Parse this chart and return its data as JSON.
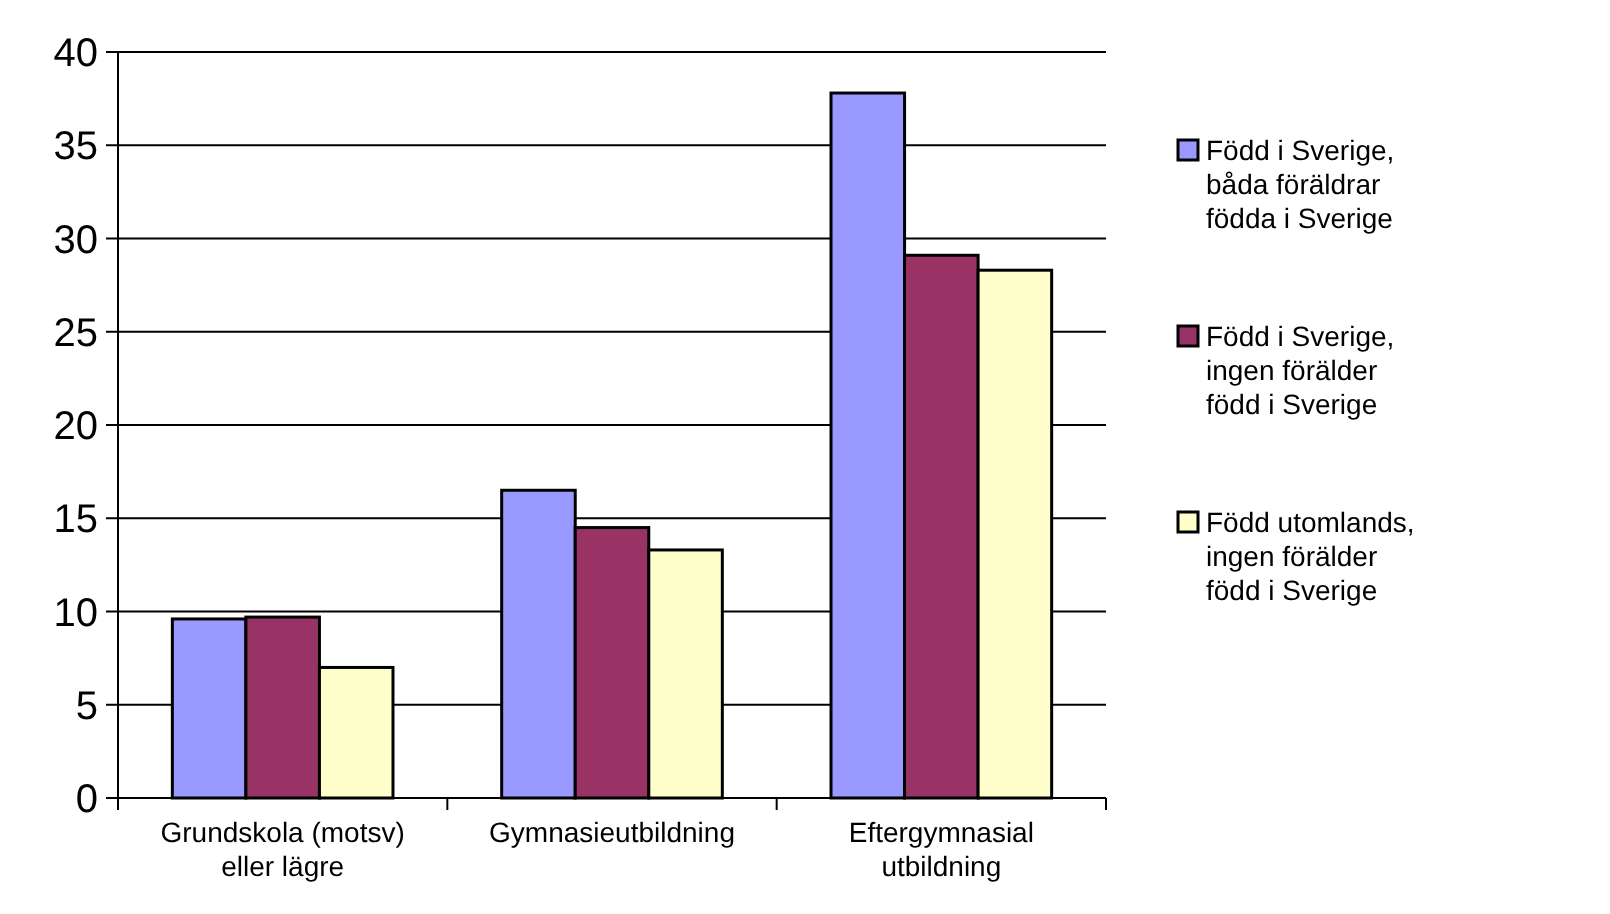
{
  "chart_data": {
    "type": "bar",
    "categories": [
      "Grundskola (motsv) eller lägre",
      "Gymnasieutbildning",
      "Eftergymnasial utbildning"
    ],
    "series": [
      {
        "name": "Född i Sverige, båda föräldrar födda i Sverige",
        "color": "#9999ff",
        "values": [
          9.6,
          16.5,
          37.8
        ]
      },
      {
        "name": "Född i Sverige, ingen förälder född i Sverige",
        "color": "#993366",
        "values": [
          9.7,
          14.5,
          29.1
        ]
      },
      {
        "name": "Född utomlands, ingen förälder född i Sverige",
        "color": "#ffffcc",
        "values": [
          7.0,
          13.3,
          28.3
        ]
      }
    ],
    "ylim": [
      0,
      40
    ],
    "yticks": [
      0,
      5,
      10,
      15,
      20,
      25,
      30,
      35,
      40
    ],
    "grid": "y",
    "legend": "right"
  }
}
